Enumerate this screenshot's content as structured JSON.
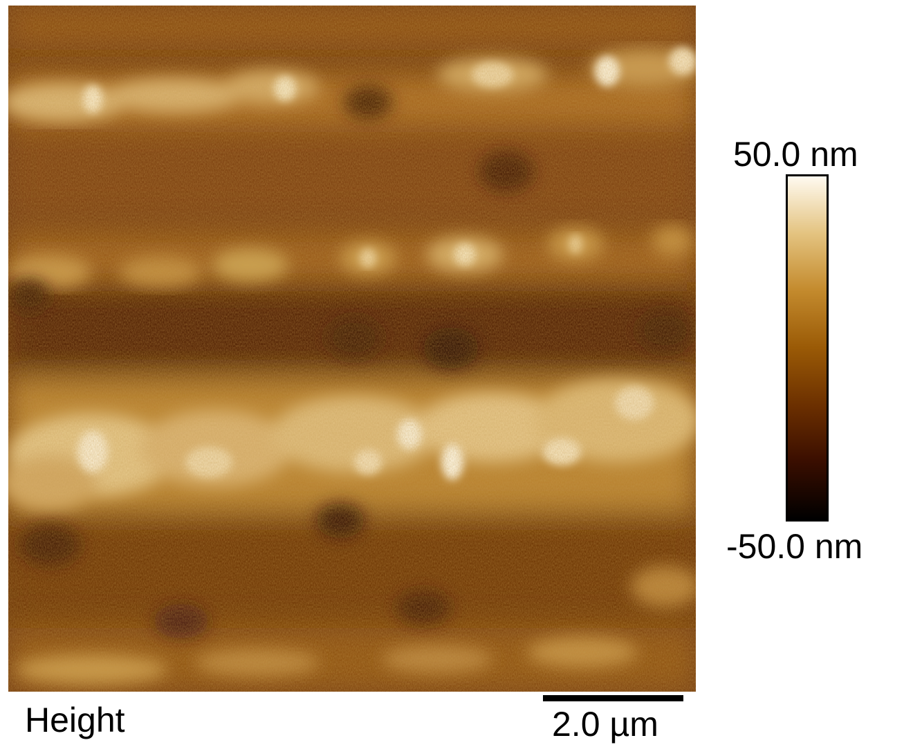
{
  "image": {
    "channel_label": "Height",
    "scale_bar_label": "2.0 µm",
    "colorbar": {
      "max_label": "50.0 nm",
      "min_label": "-50.0 nm",
      "colors": [
        "#000000",
        "#3a0e00",
        "#6b2f00",
        "#9a5a06",
        "#c48b2e",
        "#e3c27e",
        "#fffaf0"
      ]
    },
    "dominant_colors": {
      "dark": "#4a1c02",
      "mid": "#8a4d0a",
      "bright": "#f2e2b8"
    }
  }
}
